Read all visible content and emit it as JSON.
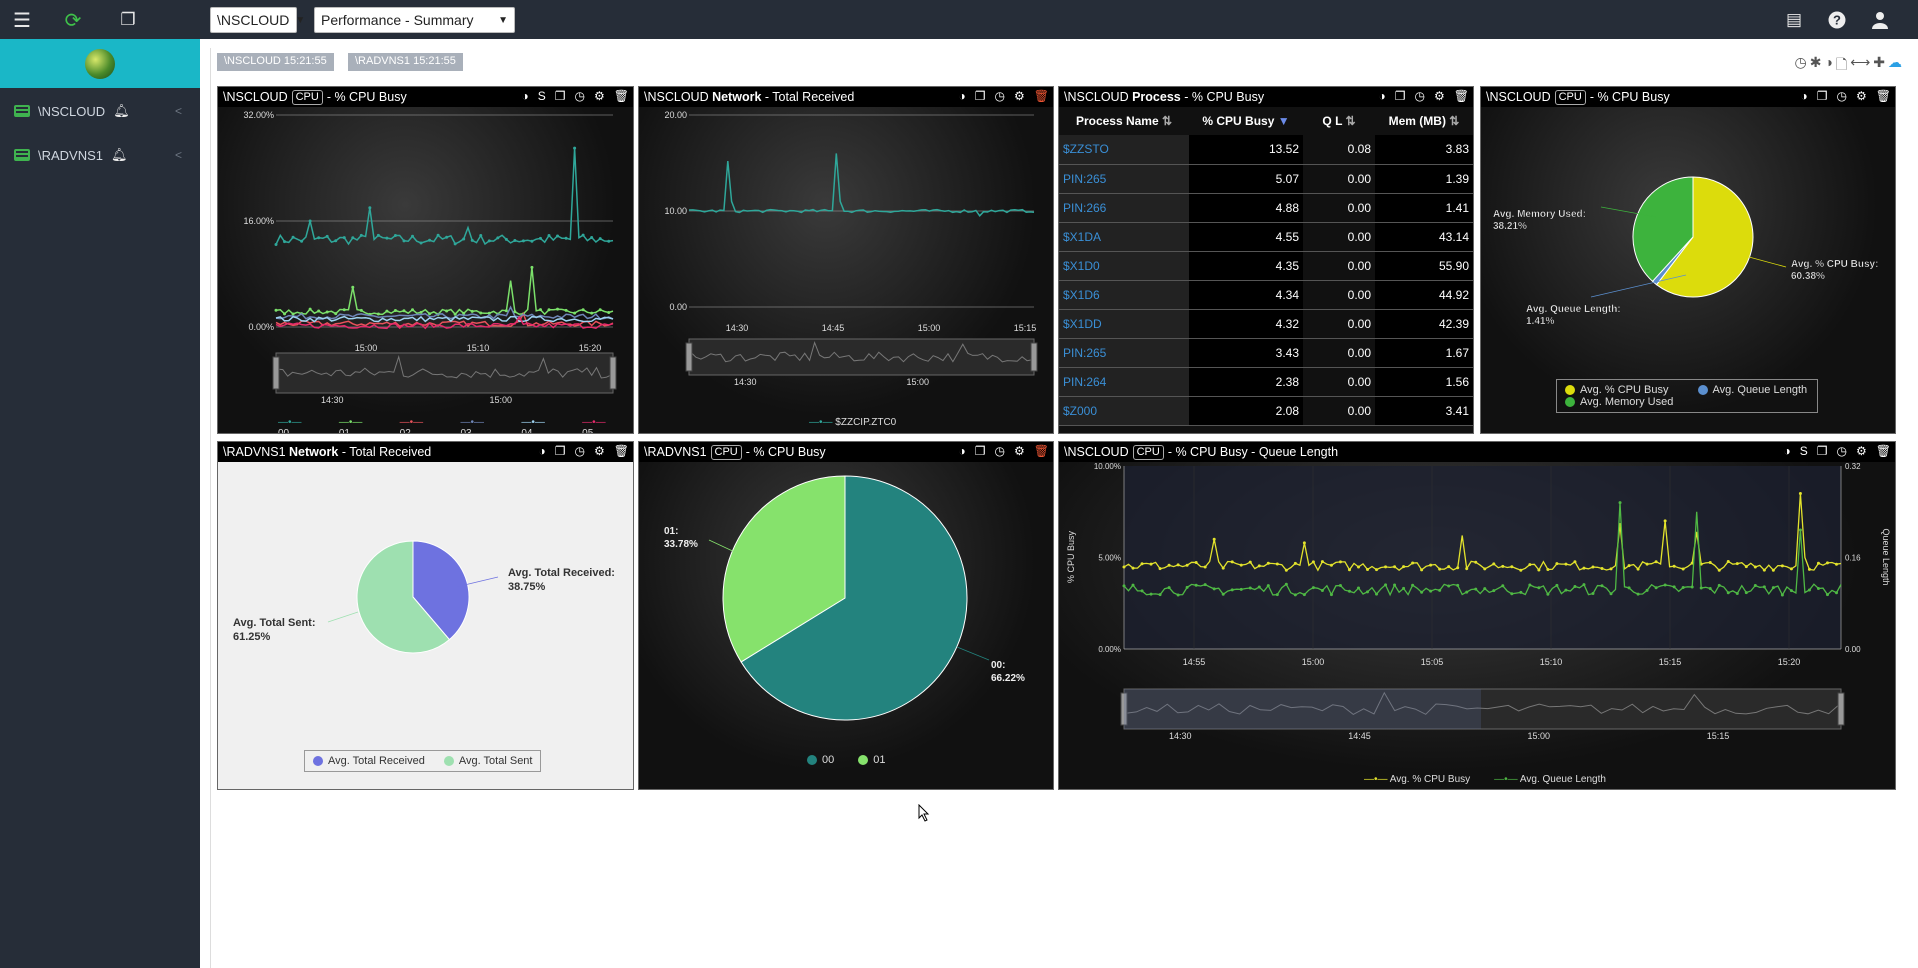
{
  "topbar": {
    "system_select": "\\NSCLOUD",
    "view_select": "Performance - Summary"
  },
  "sidebar": {
    "items": [
      {
        "label": "\\NSCLOUD"
      },
      {
        "label": "\\RADVNS1"
      }
    ]
  },
  "tags": [
    "\\NSCLOUD  15:21:55",
    "\\RADVNS1  15:21:55"
  ],
  "panels": {
    "p1": {
      "system": "\\NSCLOUD",
      "badge": "CPU",
      "title": "- % CPU Busy",
      "extra_icon": "S",
      "chart_data": {
        "type": "line",
        "ylim": [
          0,
          32
        ],
        "yticks": [
          "32.00%",
          "16.00%",
          "0.00%"
        ],
        "xticks": [
          "15:00",
          "15:10",
          "15:20"
        ],
        "nav_xticks": [
          "14:30",
          "15:00"
        ],
        "series": [
          {
            "name": "00",
            "color": "#2fa79a"
          },
          {
            "name": "01",
            "color": "#7be06a"
          },
          {
            "name": "02",
            "color": "#e8525b"
          },
          {
            "name": "03",
            "color": "#6f86b8"
          },
          {
            "name": "04",
            "color": "#9ed2f0"
          },
          {
            "name": "05",
            "color": "#e52a6b"
          }
        ]
      }
    },
    "p2": {
      "system": "\\NSCLOUD",
      "bold": "Network",
      "title": "- Total Received",
      "chart_data": {
        "type": "line",
        "ylim": [
          0,
          20
        ],
        "yticks": [
          "20.00",
          "10.00",
          "0.00"
        ],
        "xticks": [
          "14:30",
          "14:45",
          "15:00",
          "15:15"
        ],
        "nav_xticks": [
          "14:30",
          "15:00"
        ],
        "series": [
          {
            "name": "$ZZCIP.ZTC0",
            "color": "#2fa79a"
          }
        ]
      }
    },
    "p3": {
      "system": "\\NSCLOUD",
      "bold": "Process",
      "title": "- % CPU Busy",
      "columns": [
        "Process Name",
        "% CPU Busy",
        "Q L",
        "Mem (MB)"
      ],
      "rows": [
        [
          "$ZZSTO",
          "13.52",
          "0.08",
          "3.83"
        ],
        [
          "PIN:265",
          "5.07",
          "0.00",
          "1.39"
        ],
        [
          "PIN:266",
          "4.88",
          "0.00",
          "1.41"
        ],
        [
          "$X1DA",
          "4.55",
          "0.00",
          "43.14"
        ],
        [
          "$X1D0",
          "4.35",
          "0.00",
          "55.90"
        ],
        [
          "$X1D6",
          "4.34",
          "0.00",
          "44.92"
        ],
        [
          "$X1DD",
          "4.32",
          "0.00",
          "42.39"
        ],
        [
          "PIN:265",
          "3.43",
          "0.00",
          "1.67"
        ],
        [
          "PIN:264",
          "2.38",
          "0.00",
          "1.56"
        ],
        [
          "$Z000",
          "2.08",
          "0.00",
          "3.41"
        ]
      ]
    },
    "p4": {
      "system": "\\NSCLOUD",
      "badge": "CPU",
      "title": "- % CPU Busy",
      "chart_data": {
        "type": "pie",
        "slices": [
          {
            "name": "Avg. % CPU Busy",
            "value": 60.38,
            "label": "Avg. % CPU Busy:\n60.38%",
            "color": "#dcdc0c"
          },
          {
            "name": "Avg. Queue Length",
            "value": 1.41,
            "label": "Avg. Queue Length:\n1.41%",
            "color": "#5b8fcf"
          },
          {
            "name": "Avg. Memory Used",
            "value": 38.21,
            "label": "Avg. Memory Used:\n38.21%",
            "color": "#3db33d"
          }
        ]
      }
    },
    "p5": {
      "system": "\\RADVNS1",
      "bold": "Network",
      "title": "- Total Received",
      "chart_data": {
        "type": "pie",
        "slices": [
          {
            "name": "Avg. Total Received",
            "value": 38.75,
            "label1": "Avg. Total Received:",
            "label2": "38.75%",
            "color": "#6e72e0"
          },
          {
            "name": "Avg. Total Sent",
            "value": 61.25,
            "label1": "Avg. Total Sent:",
            "label2": "61.25%",
            "color": "#9ee0b0"
          }
        ]
      }
    },
    "p6": {
      "system": "\\RADVNS1",
      "badge": "CPU",
      "title": "- % CPU Busy",
      "chart_data": {
        "type": "pie",
        "slices": [
          {
            "name": "00",
            "value": 66.22,
            "label1": "00:",
            "label2": "66.22%",
            "color": "#23837e"
          },
          {
            "name": "01",
            "value": 33.78,
            "label1": "01:",
            "label2": "33.78%",
            "color": "#86e26c"
          }
        ]
      }
    },
    "p7": {
      "system": "\\NSCLOUD",
      "badge": "CPU",
      "title": "- % CPU Busy - Queue Length",
      "extra_icon": "S",
      "chart_data": {
        "type": "line",
        "ylabel": "% CPU Busy",
        "y2label": "Queue Length",
        "yticks": [
          "10.00%",
          "5.00%",
          "0.00%"
        ],
        "y2ticks": [
          "0.32",
          "0.16",
          "0.00"
        ],
        "xticks": [
          "14:55",
          "15:00",
          "15:05",
          "15:10",
          "15:15",
          "15:20"
        ],
        "nav_xticks": [
          "14:30",
          "14:45",
          "15:00",
          "15:15"
        ],
        "series": [
          {
            "name": "Avg. % CPU Busy",
            "color": "#e3e32c"
          },
          {
            "name": "Avg. Queue Length",
            "color": "#4fb844"
          }
        ]
      }
    }
  }
}
